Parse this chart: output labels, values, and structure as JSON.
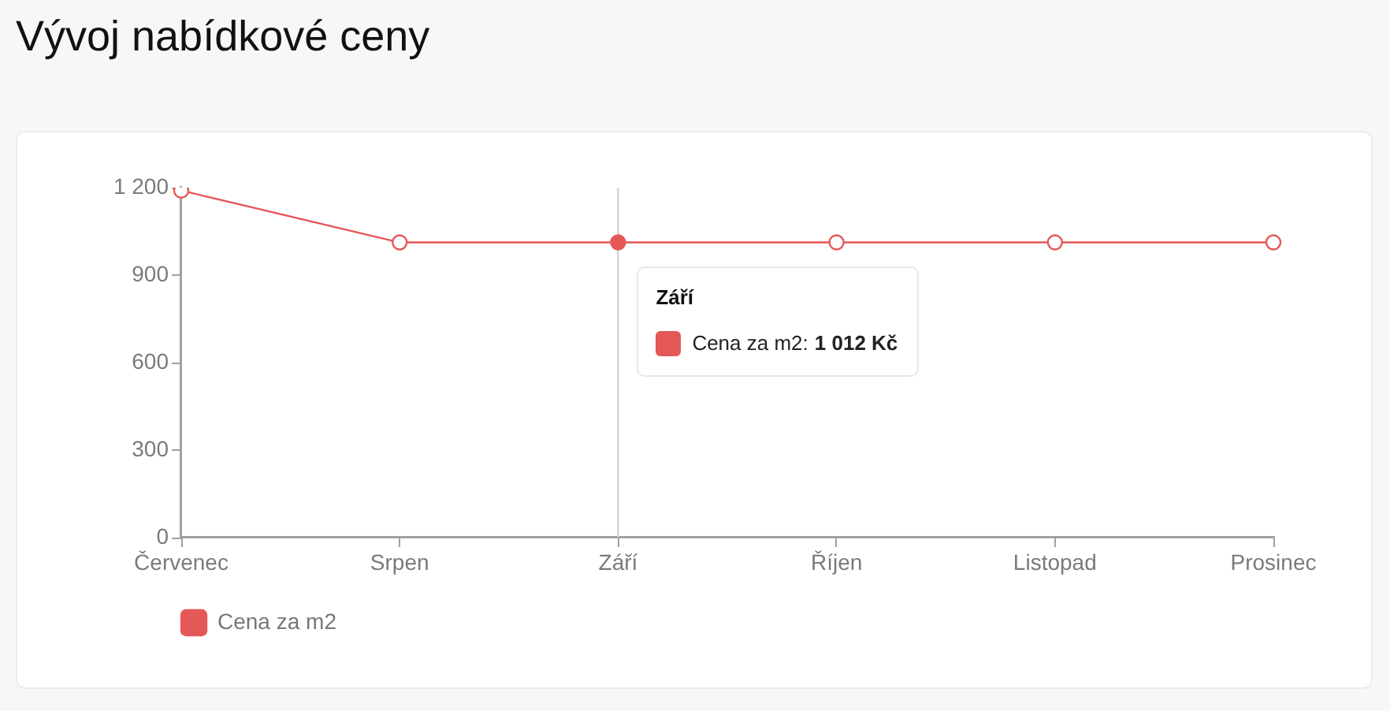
{
  "chart_data": {
    "type": "line",
    "title": "Vývoj nabídkové ceny",
    "categories": [
      "Červenec",
      "Srpen",
      "Září",
      "Říjen",
      "Listopad",
      "Prosinec"
    ],
    "series": [
      {
        "name": "Cena za m2",
        "color": "#e45858",
        "values": [
          1190,
          1012,
          1012,
          1012,
          1012,
          1012
        ]
      }
    ],
    "ylim": [
      0,
      1200
    ],
    "yticks": [
      0,
      300,
      600,
      900,
      {
        "value": 1200,
        "label": "1 200"
      }
    ],
    "grid": false,
    "legend": "bottom left",
    "marker": "circle",
    "line_style": "solid",
    "ref_lines": [
      {
        "axis": "x",
        "value": "Září",
        "label": "Září",
        "color": "#cccccc"
      }
    ],
    "annotations": [
      "Cena za m2:",
      "1 012 Kč"
    ]
  }
}
